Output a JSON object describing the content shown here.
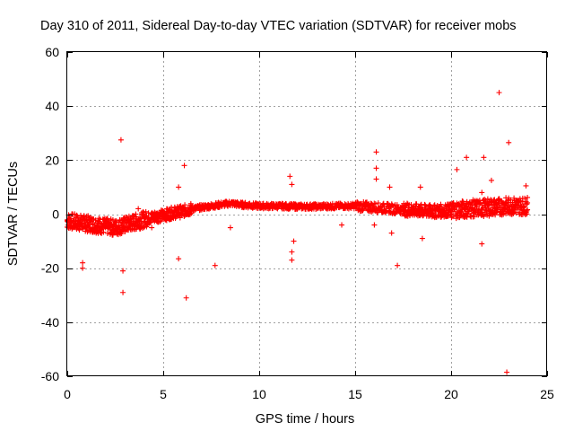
{
  "chart_data": {
    "type": "scatter",
    "title": "Day 310 of 2011, Sidereal Day-to-day VTEC variation (SDTVAR) for receiver mobs",
    "xlabel": "GPS time / hours",
    "ylabel": "SDTVAR / TECUs",
    "xlim": [
      0,
      25
    ],
    "ylim": [
      -60,
      60
    ],
    "xticks": [
      0,
      5,
      10,
      15,
      20,
      25
    ],
    "yticks": [
      -60,
      -40,
      -20,
      0,
      20,
      40,
      60
    ],
    "xtick_labels": [
      "0",
      "5",
      "10",
      "15",
      "20",
      "25"
    ],
    "ytick_labels": [
      "-60",
      "-40",
      "-20",
      "0",
      "20",
      "40",
      "60"
    ],
    "grid": true,
    "marker": "+",
    "color": "#ff0000",
    "series": [
      {
        "name": "SDTVAR",
        "band_trend": [
          [
            0.0,
            -2.5
          ],
          [
            0.5,
            -3.0
          ],
          [
            1.0,
            -3.5
          ],
          [
            1.5,
            -4.0
          ],
          [
            2.0,
            -4.5
          ],
          [
            2.5,
            -5.0
          ],
          [
            3.0,
            -4.0
          ],
          [
            3.5,
            -3.0
          ],
          [
            4.0,
            -2.0
          ],
          [
            4.5,
            -1.0
          ],
          [
            5.0,
            -0.5
          ],
          [
            5.5,
            0.5
          ],
          [
            6.0,
            1.0
          ],
          [
            6.5,
            2.0
          ],
          [
            7.0,
            2.5
          ],
          [
            7.5,
            3.0
          ],
          [
            8.0,
            3.5
          ],
          [
            8.5,
            4.0
          ],
          [
            9.0,
            3.5
          ],
          [
            10.0,
            3.0
          ],
          [
            11.0,
            3.0
          ],
          [
            12.0,
            2.8
          ],
          [
            13.0,
            2.8
          ],
          [
            14.0,
            3.0
          ],
          [
            15.0,
            3.0
          ],
          [
            16.0,
            2.5
          ],
          [
            17.0,
            2.0
          ],
          [
            18.0,
            1.5
          ],
          [
            19.0,
            1.0
          ],
          [
            20.0,
            1.5
          ],
          [
            21.0,
            2.0
          ],
          [
            22.0,
            2.5
          ],
          [
            23.0,
            3.0
          ],
          [
            24.0,
            3.0
          ]
        ],
        "outliers": [
          [
            2.8,
            27.5
          ],
          [
            2.9,
            -21.0
          ],
          [
            2.9,
            -29.0
          ],
          [
            0.8,
            -18.0
          ],
          [
            0.8,
            -20.0
          ],
          [
            6.2,
            -31.0
          ],
          [
            6.1,
            18.0
          ],
          [
            5.8,
            10.0
          ],
          [
            5.8,
            -16.5
          ],
          [
            7.7,
            -19.0
          ],
          [
            8.5,
            -5.0
          ],
          [
            11.6,
            14.0
          ],
          [
            11.7,
            11.0
          ],
          [
            11.7,
            -14.0
          ],
          [
            11.7,
            -17.0
          ],
          [
            11.8,
            -10.0
          ],
          [
            16.1,
            23.0
          ],
          [
            16.1,
            17.0
          ],
          [
            16.1,
            13.0
          ],
          [
            16.0,
            -4.0
          ],
          [
            16.8,
            10.0
          ],
          [
            16.9,
            -7.0
          ],
          [
            17.2,
            -19.0
          ],
          [
            18.4,
            10.0
          ],
          [
            18.5,
            -9.0
          ],
          [
            20.3,
            16.5
          ],
          [
            20.8,
            21.0
          ],
          [
            21.7,
            21.0
          ],
          [
            21.6,
            8.0
          ],
          [
            21.6,
            -11.0
          ],
          [
            22.1,
            12.5
          ],
          [
            22.5,
            45.0
          ],
          [
            23.0,
            26.5
          ],
          [
            22.9,
            -58.5
          ],
          [
            23.9,
            10.5
          ],
          [
            9.5,
            4.0
          ],
          [
            13.9,
            2.0
          ],
          [
            14.3,
            -4.0
          ],
          [
            4.4,
            -5.0
          ],
          [
            3.7,
            2.0
          ]
        ]
      }
    ]
  }
}
